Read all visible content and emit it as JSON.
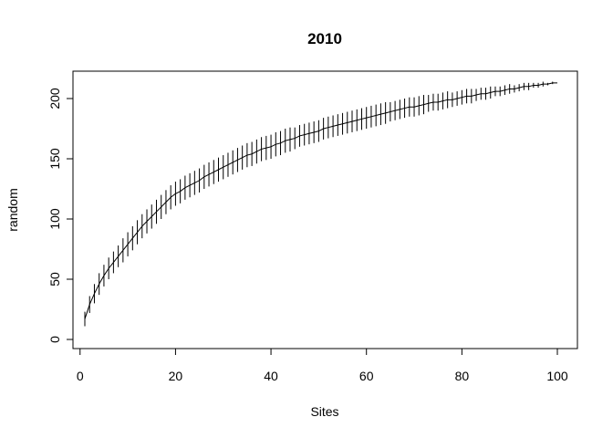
{
  "chart_data": {
    "type": "line",
    "title": "2010",
    "xlabel": "Sites",
    "ylabel": "random",
    "xlim": [
      1,
      100
    ],
    "ylim": [
      0,
      215
    ],
    "x_ticks": [
      0,
      20,
      40,
      60,
      80,
      100
    ],
    "y_ticks": [
      0,
      50,
      100,
      150,
      200
    ],
    "grid": false,
    "legend": "none",
    "line_color": "#000000",
    "series": [
      {
        "x": [
          1,
          2,
          3,
          4,
          5,
          6,
          7,
          8,
          9,
          10,
          11,
          12,
          13,
          14,
          15,
          16,
          17,
          18,
          19,
          20,
          21,
          22,
          23,
          24,
          25,
          26,
          27,
          28,
          29,
          30,
          31,
          32,
          33,
          34,
          35,
          36,
          37,
          38,
          39,
          40,
          41,
          42,
          43,
          44,
          45,
          46,
          47,
          48,
          49,
          50,
          51,
          52,
          53,
          54,
          55,
          56,
          57,
          58,
          59,
          60,
          61,
          62,
          63,
          64,
          65,
          66,
          67,
          68,
          69,
          70,
          71,
          72,
          73,
          74,
          75,
          76,
          77,
          78,
          79,
          80,
          81,
          82,
          83,
          84,
          85,
          86,
          87,
          88,
          89,
          90,
          91,
          92,
          93,
          94,
          95,
          96,
          97,
          98,
          99,
          100
        ],
        "y": [
          17,
          29,
          38,
          46,
          53,
          59,
          64,
          69,
          74,
          79,
          84,
          89,
          94,
          98,
          102,
          106,
          110,
          114,
          118,
          121,
          123,
          126,
          128,
          130,
          132,
          135,
          137,
          139,
          141,
          143,
          145,
          147,
          149,
          151,
          153,
          154,
          156,
          158,
          159,
          160,
          162,
          163,
          165,
          166,
          167,
          169,
          170,
          171,
          172,
          173,
          175,
          176,
          177,
          178,
          179,
          180,
          181,
          182,
          183,
          184,
          185,
          186,
          187,
          188,
          189,
          190,
          191,
          192,
          193,
          193,
          194,
          195,
          196,
          197,
          197,
          198,
          199,
          199,
          200,
          201,
          202,
          202,
          203,
          204,
          204,
          205,
          206,
          206,
          207,
          208,
          208,
          209,
          210,
          210,
          211,
          211,
          212,
          212,
          213,
          213
        ],
        "sd": [
          6,
          7,
          8,
          9,
          9,
          9,
          9,
          9,
          10,
          10,
          10,
          10,
          10,
          10,
          10,
          10,
          10,
          10,
          10,
          10,
          10,
          10,
          10,
          10,
          10,
          10,
          10,
          10,
          10,
          10,
          10,
          10,
          10,
          10,
          10,
          10,
          10,
          10,
          10,
          10,
          10,
          10,
          10,
          10,
          9,
          9,
          9,
          9,
          9,
          9,
          9,
          9,
          9,
          9,
          9,
          9,
          9,
          9,
          9,
          9,
          9,
          9,
          9,
          9,
          8,
          8,
          8,
          8,
          8,
          8,
          8,
          8,
          7,
          7,
          7,
          7,
          7,
          6,
          6,
          6,
          6,
          6,
          5,
          5,
          5,
          5,
          4,
          4,
          4,
          4,
          3,
          3,
          3,
          3,
          2,
          2,
          2,
          1,
          1,
          0
        ]
      }
    ]
  }
}
